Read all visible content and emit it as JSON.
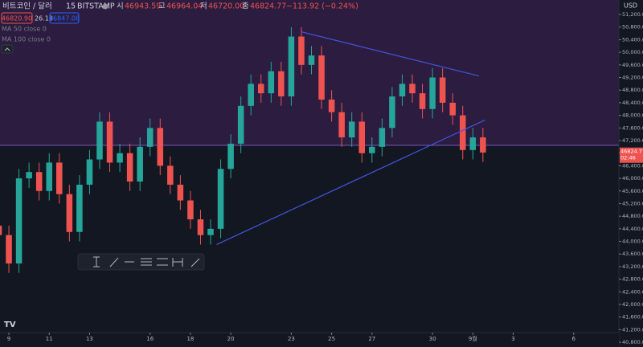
{
  "header": {
    "symbol": "비트코인 / 달러",
    "interval": "15",
    "exchange": "BITSTAMP",
    "open_label": "시",
    "open": "46943.59",
    "high_label": "고",
    "high": "46964.04",
    "low_label": "저",
    "low": "46720.00",
    "close_label": "종",
    "close": "46824.77",
    "change": "−113.92 (−0.24%)",
    "bid": "46820.90",
    "spread": "26.18",
    "ask": "46847.08",
    "ma1": "MA 50 close 0",
    "ma2": "MA 100 close 0",
    "currency": "USD"
  },
  "chart_data": {
    "type": "candlestick",
    "up_color": "#26a69a",
    "down_color": "#ef5350",
    "x": [
      -0.5,
      0,
      0.5,
      1,
      1.5,
      2,
      2.5,
      3,
      3.5,
      4,
      4.5,
      5,
      5.5,
      6,
      6.5,
      7,
      7.5,
      8,
      8.5,
      9,
      9.5,
      10,
      10.5,
      11,
      11.5,
      12,
      12.5,
      13,
      13.5,
      14,
      14.5,
      15,
      15.5,
      16,
      16.5,
      17,
      17.5,
      18,
      18.5,
      19,
      19.5,
      20,
      20.5,
      21,
      21.5,
      22,
      22.5,
      23,
      23.5
    ],
    "open": [
      44500,
      44200,
      43300,
      46000,
      46200,
      45600,
      46500,
      45500,
      44300,
      45800,
      46600,
      47800,
      46500,
      46800,
      45900,
      47000,
      47600,
      46400,
      45800,
      45300,
      44700,
      44200,
      44400,
      46300,
      47100,
      48300,
      49000,
      48700,
      49400,
      48600,
      50500,
      49600,
      49900,
      48500,
      48100,
      47300,
      47800,
      46800,
      47000,
      47600,
      48600,
      49000,
      48700,
      48200,
      49200,
      48400,
      48000,
      46900,
      47300
    ],
    "high": [
      44800,
      44500,
      46300,
      46500,
      46500,
      46800,
      46800,
      45800,
      46100,
      46900,
      48100,
      48100,
      47100,
      47100,
      47300,
      47900,
      47900,
      46700,
      46100,
      45600,
      45000,
      44700,
      46600,
      47400,
      48600,
      49300,
      49300,
      49700,
      49700,
      50800,
      50800,
      50200,
      50200,
      48800,
      48400,
      48100,
      48100,
      47300,
      47900,
      48900,
      49300,
      49300,
      49000,
      49500,
      49500,
      48700,
      48300,
      47600,
      47600
    ],
    "low": [
      43900,
      43000,
      43000,
      45700,
      45300,
      45300,
      45200,
      44000,
      44000,
      45500,
      46300,
      46200,
      46200,
      45600,
      45600,
      46700,
      46100,
      45500,
      45000,
      44400,
      43900,
      43900,
      44100,
      46000,
      46800,
      48000,
      48400,
      48400,
      48300,
      48300,
      49300,
      49300,
      48200,
      47800,
      47000,
      47000,
      46500,
      46500,
      46700,
      47300,
      48300,
      48400,
      47900,
      47900,
      48100,
      47700,
      46600,
      46600,
      46520
    ],
    "close": [
      44200,
      43300,
      46000,
      46200,
      45600,
      46500,
      45500,
      44300,
      45800,
      46600,
      47800,
      46500,
      46800,
      45900,
      47000,
      47600,
      46400,
      45800,
      45300,
      44700,
      44200,
      44400,
      46300,
      47100,
      48300,
      49000,
      48700,
      49400,
      48600,
      50500,
      49600,
      49900,
      48500,
      48100,
      47300,
      47800,
      46800,
      47000,
      47600,
      48600,
      49000,
      48700,
      48200,
      49200,
      48400,
      48000,
      46900,
      47300,
      46820
    ],
    "xlim": [
      -0.44,
      30.24
    ],
    "xticks": [
      {
        "value": 0,
        "label": "9"
      },
      {
        "value": 2,
        "label": "11"
      },
      {
        "value": 4,
        "label": "13"
      },
      {
        "value": 7,
        "label": "16"
      },
      {
        "value": 9,
        "label": "18"
      },
      {
        "value": 11,
        "label": "20"
      },
      {
        "value": 14,
        "label": "23"
      },
      {
        "value": 16,
        "label": "25"
      },
      {
        "value": 18,
        "label": "27"
      },
      {
        "value": 21,
        "label": "30"
      },
      {
        "value": 23,
        "label": "9월"
      },
      {
        "value": 25,
        "label": "3"
      },
      {
        "value": 28,
        "label": "6"
      }
    ],
    "ylim": [
      40700,
      51660
    ],
    "yticks": [
      {
        "value": 40800,
        "label": "40,800.00"
      },
      {
        "value": 41200,
        "label": "41,200.00"
      },
      {
        "value": 41600,
        "label": "41,600.00"
      },
      {
        "value": 42000,
        "label": "42,000.00"
      },
      {
        "value": 42400,
        "label": "42,400.00"
      },
      {
        "value": 42800,
        "label": "42,800.00"
      },
      {
        "value": 43200,
        "label": "43,200.00"
      },
      {
        "value": 43600,
        "label": "43,600.00"
      },
      {
        "value": 44000,
        "label": "44,000.00"
      },
      {
        "value": 44400,
        "label": "44,400.00"
      },
      {
        "value": 44800,
        "label": "44,800.00"
      },
      {
        "value": 45200,
        "label": "45,200.00"
      },
      {
        "value": 45600,
        "label": "45,600.00"
      },
      {
        "value": 46000,
        "label": "46,000.00"
      },
      {
        "value": 46400,
        "label": "46,400.00"
      },
      {
        "value": 46800,
        "label": "46,800.00"
      },
      {
        "value": 47200,
        "label": "47,200.00"
      },
      {
        "value": 47600,
        "label": "47,600.00"
      },
      {
        "value": 48000,
        "label": "48,000.00"
      },
      {
        "value": 48400,
        "label": "48,400.00"
      },
      {
        "value": 48800,
        "label": "48,800.00"
      },
      {
        "value": 49200,
        "label": "49,200.00"
      },
      {
        "value": 49600,
        "label": "49,600.00"
      },
      {
        "value": 50000,
        "label": "50,000.00"
      },
      {
        "value": 50400,
        "label": "50,400.00"
      },
      {
        "value": 50800,
        "label": "50,800.00"
      },
      {
        "value": 51200,
        "label": "51,200.00"
      }
    ],
    "zone_min": 47050,
    "zone_color": "#2b1c40",
    "zone_line_color": "#7e57c2",
    "trendlines": [
      {
        "x": [
          14.5,
          23.3
        ],
        "y": [
          50650,
          49250
        ]
      },
      {
        "x": [
          10.3,
          23.6
        ],
        "y": [
          43900,
          47850
        ]
      }
    ],
    "trendline_color": "#4354e0",
    "last_price": {
      "value": 46824.77,
      "label": "46824.77",
      "countdown": "02:46"
    }
  }
}
